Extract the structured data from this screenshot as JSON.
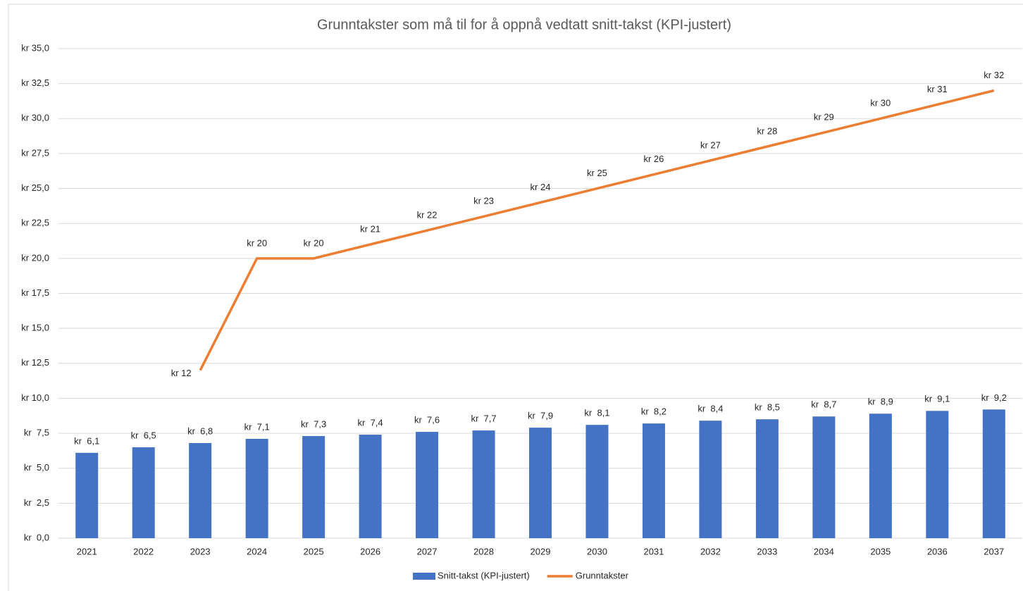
{
  "chart_data": {
    "type": "combo",
    "title": "Grunntakster som må til for å oppnå vedtatt snitt-takst (KPI-justert)",
    "categories": [
      "2021",
      "2022",
      "2023",
      "2024",
      "2025",
      "2026",
      "2027",
      "2028",
      "2029",
      "2030",
      "2031",
      "2032",
      "2033",
      "2034",
      "2035",
      "2036",
      "2037"
    ],
    "series": [
      {
        "name": "Snitt-takst (KPI-justert)",
        "type": "bar",
        "color": "#4472c4",
        "values": [
          6.1,
          6.5,
          6.8,
          7.1,
          7.3,
          7.4,
          7.6,
          7.7,
          7.9,
          8.1,
          8.2,
          8.4,
          8.5,
          8.7,
          8.9,
          9.1,
          9.2
        ],
        "value_labels": [
          "kr  6,1",
          "kr  6,5",
          "kr  6,8",
          "kr  7,1",
          "kr  7,3",
          "kr  7,4",
          "kr  7,6",
          "kr  7,7",
          "kr  7,9",
          "kr  8,1",
          "kr  8,2",
          "kr  8,4",
          "kr  8,5",
          "kr  8,7",
          "kr  8,9",
          "kr  9,1",
          "kr  9,2"
        ]
      },
      {
        "name": "Grunntakster",
        "type": "line",
        "color": "#ed7d31",
        "values": [
          null,
          null,
          12,
          20,
          20,
          21,
          22,
          23,
          24,
          25,
          26,
          27,
          28,
          29,
          30,
          31,
          32
        ],
        "value_labels": [
          null,
          null,
          "kr 12",
          "kr 20",
          "kr 20",
          "kr 21",
          "kr 22",
          "kr 23",
          "kr 24",
          "kr 25",
          "kr 26",
          "kr 27",
          "kr 28",
          "kr 29",
          "kr 30",
          "kr 31",
          "kr 32"
        ]
      }
    ],
    "ylim": [
      0,
      35
    ],
    "yticks": [
      {
        "value": 0,
        "label": "kr  0,0"
      },
      {
        "value": 2.5,
        "label": "kr  2,5"
      },
      {
        "value": 5,
        "label": "kr  5,0"
      },
      {
        "value": 7.5,
        "label": "kr  7,5"
      },
      {
        "value": 10,
        "label": "kr 10,0"
      },
      {
        "value": 12.5,
        "label": "kr 12,5"
      },
      {
        "value": 15,
        "label": "kr 15,0"
      },
      {
        "value": 17.5,
        "label": "kr 17,5"
      },
      {
        "value": 20,
        "label": "kr 20,0"
      },
      {
        "value": 22.5,
        "label": "kr 22,5"
      },
      {
        "value": 25,
        "label": "kr 25,0"
      },
      {
        "value": 27.5,
        "label": "kr 27,5"
      },
      {
        "value": 30,
        "label": "kr 30,0"
      },
      {
        "value": 32.5,
        "label": "kr 32,5"
      },
      {
        "value": 35,
        "label": "kr 35,0"
      }
    ],
    "grid": true,
    "legend": "bottom"
  }
}
